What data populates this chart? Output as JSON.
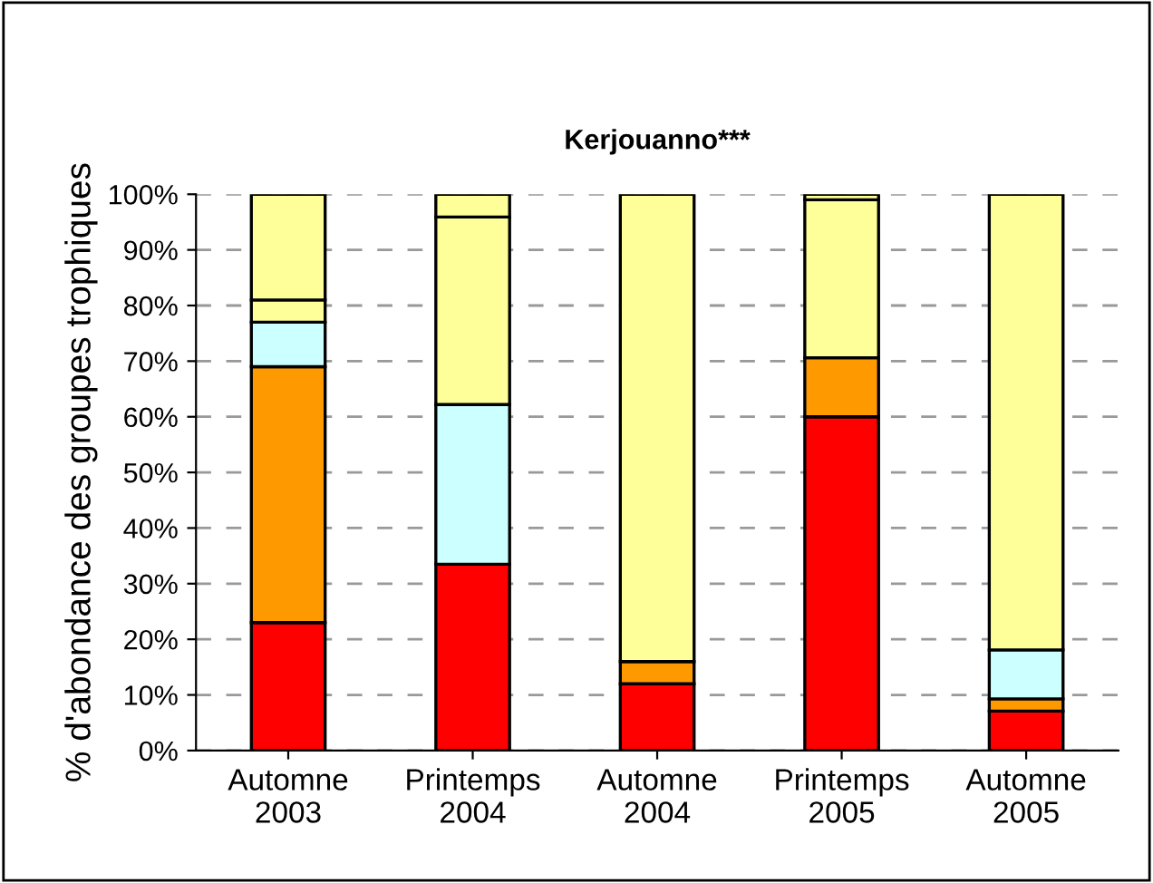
{
  "chart_data": {
    "type": "bar",
    "title": "Kerjouanno***",
    "ylabel": "% d'abondance des groupes trophiques",
    "categories": [
      "Automne\n2003",
      "Printemps\n2004",
      "Automne\n2004",
      "Printemps\n2005",
      "Automne\n2005"
    ],
    "stacked": true,
    "grid": "y",
    "ylim": [
      0,
      100
    ],
    "yticks": [
      {
        "value": 0,
        "label": "0%"
      },
      {
        "value": 10,
        "label": "10%"
      },
      {
        "value": 20,
        "label": "20%"
      },
      {
        "value": 30,
        "label": "30%"
      },
      {
        "value": 40,
        "label": "40%"
      },
      {
        "value": 50,
        "label": "50%"
      },
      {
        "value": 60,
        "label": "60%"
      },
      {
        "value": 70,
        "label": "70%"
      },
      {
        "value": 80,
        "label": "80%"
      },
      {
        "value": 90,
        "label": "90%"
      },
      {
        "value": 100,
        "label": "100%"
      }
    ],
    "series": [
      {
        "color": "#ff0000",
        "values": [
          23,
          33.5,
          12,
          60,
          7.1
        ]
      },
      {
        "color": "#ff9900",
        "values": [
          46,
          null,
          4,
          10.6,
          2.2
        ]
      },
      {
        "color": "#ccffff",
        "values": [
          8,
          28.7,
          null,
          null,
          8.8
        ]
      },
      {
        "color": "#ffff99",
        "values": [
          4,
          33.7,
          84,
          28.4,
          81.9
        ]
      },
      {
        "color": "#ffff99",
        "values": [
          19,
          4.1,
          null,
          1,
          null
        ]
      }
    ]
  }
}
